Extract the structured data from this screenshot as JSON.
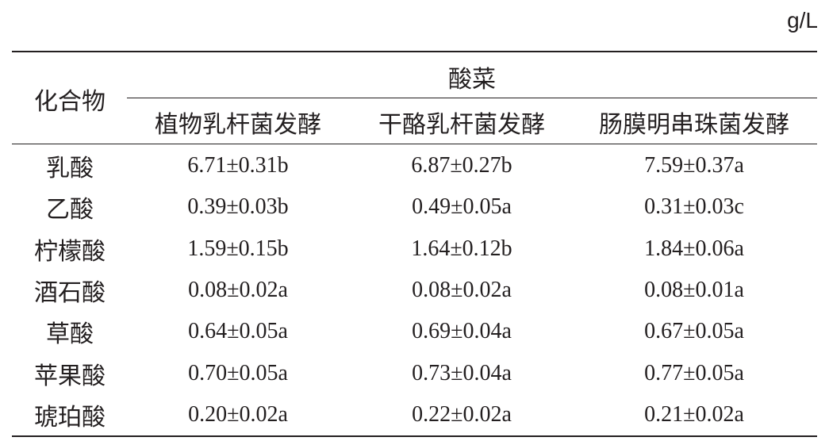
{
  "unit": "g/L",
  "table": {
    "header": {
      "row_label": "化合物",
      "group": "酸菜",
      "columns": [
        "植物乳杆菌发酵",
        "干酪乳杆菌发酵",
        "肠膜明串珠菌发酵"
      ]
    },
    "rows": [
      [
        "乳酸",
        "6.71±0.31b",
        "6.87±0.27b",
        "7.59±0.37a"
      ],
      [
        "乙酸",
        "0.39±0.03b",
        "0.49±0.05a",
        "0.31±0.03c"
      ],
      [
        "柠檬酸",
        "1.59±0.15b",
        "1.64±0.12b",
        "1.84±0.06a"
      ],
      [
        "酒石酸",
        "0.08±0.02a",
        "0.08±0.02a",
        "0.08±0.01a"
      ],
      [
        "草酸",
        "0.64±0.05a",
        "0.69±0.04a",
        "0.67±0.05a"
      ],
      [
        "苹果酸",
        "0.70±0.05a",
        "0.73±0.04a",
        "0.77±0.05a"
      ],
      [
        "琥珀酸",
        "0.20±0.02a",
        "0.22±0.02a",
        "0.21±0.02a"
      ]
    ]
  }
}
